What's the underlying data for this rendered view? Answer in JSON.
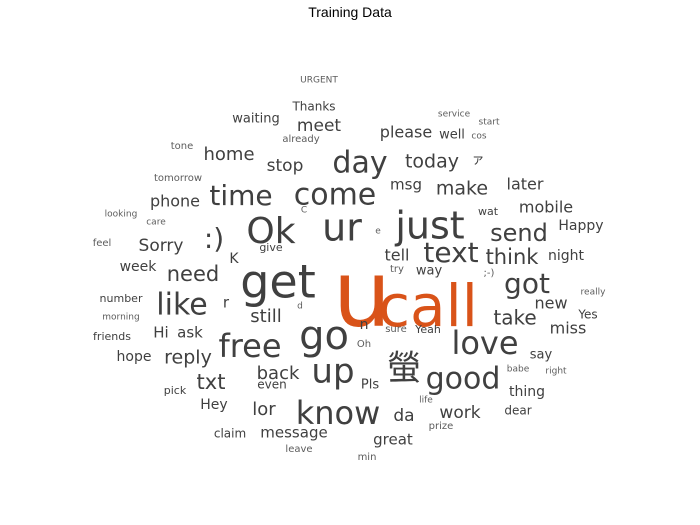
{
  "chart_data": {
    "type": "wordcloud",
    "title": "Training Data",
    "highlight_color": "#d95319",
    "word_color": "#404040",
    "words": [
      {
        "text": "u",
        "size": 92,
        "highlight": true
      },
      {
        "text": "call",
        "size": 58,
        "highlight": true
      },
      {
        "text": "get",
        "size": 46
      },
      {
        "text": "go",
        "size": 40
      },
      {
        "text": "ur",
        "size": 38
      },
      {
        "text": "just",
        "size": 38
      },
      {
        "text": "Ok",
        "size": 36
      },
      {
        "text": "know",
        "size": 32
      },
      {
        "text": "up",
        "size": 34
      },
      {
        "text": "螢",
        "size": 34
      },
      {
        "text": "free",
        "size": 32
      },
      {
        "text": "love",
        "size": 32
      },
      {
        "text": "come",
        "size": 30
      },
      {
        "text": "day",
        "size": 30
      },
      {
        "text": "good",
        "size": 30
      },
      {
        "text": "like",
        "size": 30
      },
      {
        "text": "text",
        "size": 28
      },
      {
        "text": "time",
        "size": 28
      },
      {
        "text": "got",
        "size": 28
      },
      {
        "text": ":)",
        "size": 28
      },
      {
        "text": "send",
        "size": 24
      },
      {
        "text": "need",
        "size": 21
      },
      {
        "text": "think",
        "size": 21
      },
      {
        "text": "today",
        "size": 19
      },
      {
        "text": "make",
        "size": 19
      },
      {
        "text": "take",
        "size": 20
      },
      {
        "text": "reply",
        "size": 19
      },
      {
        "text": "txt",
        "size": 21
      },
      {
        "text": "home",
        "size": 18
      },
      {
        "text": "stop",
        "size": 17
      },
      {
        "text": "back",
        "size": 18
      },
      {
        "text": "still",
        "size": 18
      },
      {
        "text": "lor",
        "size": 18
      },
      {
        "text": "da",
        "size": 17
      },
      {
        "text": "work",
        "size": 17
      },
      {
        "text": "meet",
        "size": 17
      },
      {
        "text": "Sorry",
        "size": 17
      },
      {
        "text": "phone",
        "size": 16
      },
      {
        "text": "please",
        "size": 16
      },
      {
        "text": "later",
        "size": 16
      },
      {
        "text": "mobile",
        "size": 16
      },
      {
        "text": "new",
        "size": 16
      },
      {
        "text": "miss",
        "size": 16
      },
      {
        "text": "tell",
        "size": 16
      },
      {
        "text": "msg",
        "size": 15
      },
      {
        "text": "Hi",
        "size": 15
      },
      {
        "text": "ask",
        "size": 15
      },
      {
        "text": "r",
        "size": 15
      },
      {
        "text": "message",
        "size": 15
      },
      {
        "text": "great",
        "size": 15
      },
      {
        "text": "Happy",
        "size": 14
      },
      {
        "text": "night",
        "size": 14
      },
      {
        "text": "week",
        "size": 14
      },
      {
        "text": "Hey",
        "size": 14
      },
      {
        "text": "hope",
        "size": 14
      },
      {
        "text": "thing",
        "size": 14
      },
      {
        "text": "way",
        "size": 13
      },
      {
        "text": "waiting",
        "size": 13
      },
      {
        "text": "Pls",
        "size": 13
      },
      {
        "text": "n",
        "size": 14
      },
      {
        "text": "K",
        "size": 14
      },
      {
        "text": "say",
        "size": 13
      },
      {
        "text": "well",
        "size": 13
      },
      {
        "text": "Thanks",
        "size": 12
      },
      {
        "text": "claim",
        "size": 12
      },
      {
        "text": "dear",
        "size": 12
      },
      {
        "text": "even",
        "size": 12
      },
      {
        "text": "Yes",
        "size": 12
      },
      {
        "text": "number",
        "size": 11
      },
      {
        "text": "friends",
        "size": 11
      },
      {
        "text": "give",
        "size": 11
      },
      {
        "text": "tomorrow",
        "size": 10
      },
      {
        "text": "Yeah",
        "size": 11
      },
      {
        "text": "wat",
        "size": 11
      },
      {
        "text": "pick",
        "size": 11
      },
      {
        "text": "sure",
        "size": 10
      },
      {
        "text": "try",
        "size": 10
      },
      {
        "text": "feel",
        "size": 10
      },
      {
        "text": "tone",
        "size": 10
      },
      {
        "text": "already",
        "size": 10
      },
      {
        "text": "prize",
        "size": 10
      },
      {
        "text": "leave",
        "size": 10
      },
      {
        "text": "min",
        "size": 10
      },
      {
        "text": "Oh",
        "size": 10
      },
      {
        "text": ";-)",
        "size": 10
      },
      {
        "text": "service",
        "size": 9
      },
      {
        "text": "start",
        "size": 9
      },
      {
        "text": "cos",
        "size": 9
      },
      {
        "text": "really",
        "size": 9
      },
      {
        "text": "babe",
        "size": 9
      },
      {
        "text": "right",
        "size": 9
      },
      {
        "text": "morning",
        "size": 9
      },
      {
        "text": "looking",
        "size": 9
      },
      {
        "text": "care",
        "size": 9
      },
      {
        "text": "life",
        "size": 9
      },
      {
        "text": "URGENT",
        "size": 9
      },
      {
        "text": "ァ",
        "size": 13
      },
      {
        "text": "C",
        "size": 9
      },
      {
        "text": "e",
        "size": 9
      },
      {
        "text": "d",
        "size": 9
      }
    ]
  }
}
